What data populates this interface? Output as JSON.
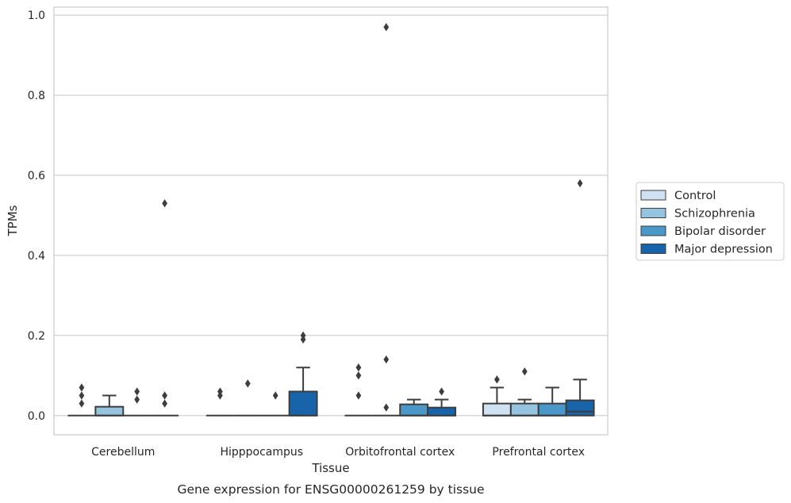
{
  "chart_data": {
    "type": "box",
    "xlabel": "Tissue",
    "ylabel": "TPMs",
    "caption": "Gene expression for ENSG00000261259 by tissue",
    "ylim": [
      -0.048,
      1.02
    ],
    "yticks": [
      "0.0",
      "0.2",
      "0.4",
      "0.6",
      "0.8",
      "1.0"
    ],
    "grid": "horizontal",
    "legend_position": "right",
    "categories": [
      "Cerebellum",
      "Hipppocampus",
      "Orbitofrontal cortex",
      "Prefrontal cortex"
    ],
    "series": [
      {
        "name": "Control",
        "color": "#d0e1f2",
        "boxes": [
          {
            "min": 0,
            "q1": 0,
            "median": 0,
            "q3": 0,
            "max": 0,
            "outliers": [
              0.03,
              0.05,
              0.07
            ]
          },
          {
            "min": 0,
            "q1": 0,
            "median": 0,
            "q3": 0,
            "max": 0,
            "outliers": [
              0.05,
              0.06
            ]
          },
          {
            "min": 0,
            "q1": 0,
            "median": 0,
            "q3": 0,
            "max": 0,
            "outliers": [
              0.05,
              0.1,
              0.12
            ]
          },
          {
            "min": 0,
            "q1": 0,
            "median": 0,
            "q3": 0.03,
            "max": 0.07,
            "outliers": [
              0.09
            ]
          }
        ]
      },
      {
        "name": "Schizophrenia",
        "color": "#94c4df",
        "boxes": [
          {
            "min": 0,
            "q1": 0,
            "median": 0,
            "q3": 0.022,
            "max": 0.05,
            "outliers": []
          },
          {
            "min": 0,
            "q1": 0,
            "median": 0,
            "q3": 0,
            "max": 0,
            "outliers": [
              0.08
            ]
          },
          {
            "min": 0,
            "q1": 0,
            "median": 0,
            "q3": 0,
            "max": 0,
            "outliers": [
              0.02,
              0.14,
              0.97
            ]
          },
          {
            "min": 0,
            "q1": 0,
            "median": 0,
            "q3": 0.03,
            "max": 0.04,
            "outliers": [
              0.11
            ]
          }
        ]
      },
      {
        "name": "Bipolar disorder",
        "color": "#4a98c9",
        "boxes": [
          {
            "min": 0,
            "q1": 0,
            "median": 0,
            "q3": 0,
            "max": 0,
            "outliers": [
              0.04,
              0.06
            ]
          },
          {
            "min": 0,
            "q1": 0,
            "median": 0,
            "q3": 0,
            "max": 0,
            "outliers": [
              0.05
            ]
          },
          {
            "min": 0,
            "q1": 0,
            "median": 0,
            "q3": 0.028,
            "max": 0.04,
            "outliers": []
          },
          {
            "min": 0,
            "q1": 0,
            "median": 0,
            "q3": 0.03,
            "max": 0.07,
            "outliers": []
          }
        ]
      },
      {
        "name": "Major depression",
        "color": "#1764ab",
        "boxes": [
          {
            "min": 0,
            "q1": 0,
            "median": 0,
            "q3": 0,
            "max": 0,
            "outliers": [
              0.03,
              0.05,
              0.53
            ]
          },
          {
            "min": 0,
            "q1": 0,
            "median": 0,
            "q3": 0.06,
            "max": 0.12,
            "outliers": [
              0.19,
              0.2
            ]
          },
          {
            "min": 0,
            "q1": 0,
            "median": 0,
            "q3": 0.02,
            "max": 0.04,
            "outliers": [
              0.06
            ]
          },
          {
            "min": 0,
            "q1": 0,
            "median": 0.01,
            "q3": 0.038,
            "max": 0.09,
            "outliers": [
              0.58
            ]
          }
        ]
      }
    ]
  }
}
